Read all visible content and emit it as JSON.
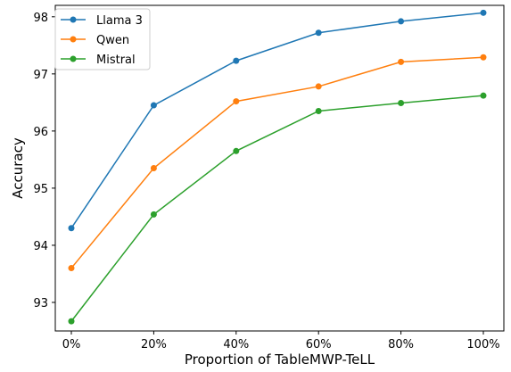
{
  "chart_data": {
    "type": "line",
    "title": "",
    "xlabel": "Proportion of TableMWP-TeLL",
    "ylabel": "Accuracy",
    "categories": [
      "0%",
      "20%",
      "40%",
      "60%",
      "80%",
      "100%"
    ],
    "yticks": [
      "93",
      "94",
      "95",
      "96",
      "97",
      "98"
    ],
    "ylim": [
      92.5,
      98.2
    ],
    "grid": false,
    "legend_position": "top-left",
    "series": [
      {
        "name": "Llama 3",
        "color": "#1f77b4",
        "values": [
          94.3,
          96.45,
          97.23,
          97.72,
          97.92,
          98.07
        ]
      },
      {
        "name": "Qwen",
        "color": "#ff7f0e",
        "values": [
          93.6,
          95.35,
          96.52,
          96.78,
          97.21,
          97.29
        ]
      },
      {
        "name": "Mistral",
        "color": "#2ca02c",
        "values": [
          92.67,
          94.54,
          95.65,
          96.35,
          96.49,
          96.62
        ]
      }
    ]
  }
}
